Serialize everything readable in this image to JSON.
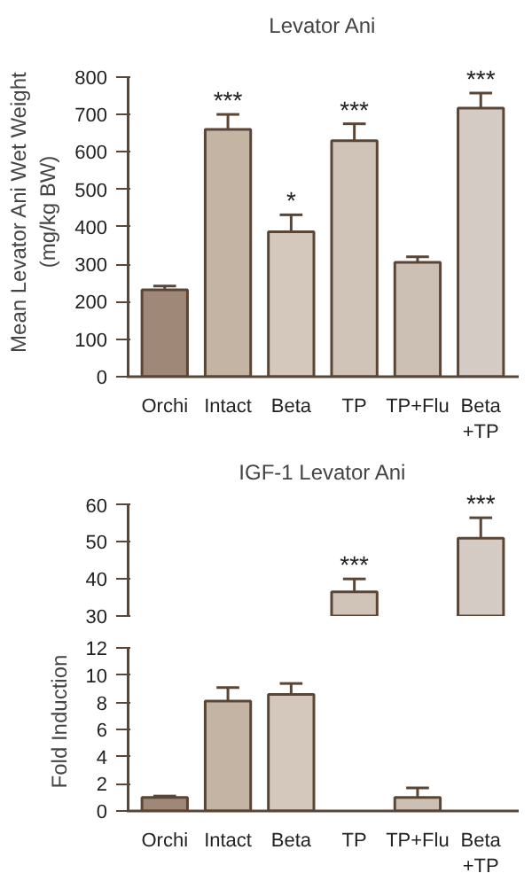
{
  "chart_data": [
    {
      "type": "bar",
      "title": "Levator Ani",
      "ylabel": "Mean Levator Ani Wet Weight\n(mg/kg BW)",
      "categories": [
        "Orchi",
        "Intact",
        "Beta",
        "TP",
        "TP+Flu",
        "Beta\n+TP"
      ],
      "values": [
        232,
        660,
        387,
        630,
        305,
        717
      ],
      "errors": [
        10,
        40,
        45,
        45,
        15,
        40
      ],
      "colors": [
        "#a08878",
        "#c4b4a4",
        "#d4c8bc",
        "#d0c4b8",
        "#ccc0b4",
        "#d4ccc4"
      ],
      "ylim": [
        0,
        800
      ],
      "yticks": [
        0,
        100,
        200,
        300,
        400,
        500,
        600,
        700,
        800
      ],
      "grid": false,
      "annotations": [
        {
          "text": "***",
          "x": "Intact",
          "y": 700
        },
        {
          "text": "*",
          "x": "Beta",
          "y": 432
        },
        {
          "text": "***",
          "x": "TP",
          "y": 675
        },
        {
          "text": "***",
          "x": "Beta\n+TP",
          "y": 757
        }
      ]
    },
    {
      "type": "bar",
      "title": "IGF-1 Levator Ani",
      "categories": [
        "Orchi",
        "Intact",
        "Beta",
        "TP",
        "TP+Flu",
        "Beta\n+TP"
      ],
      "values": [
        null,
        null,
        null,
        36.5,
        null,
        51
      ],
      "errors": [
        null,
        null,
        null,
        3.5,
        null,
        5.5
      ],
      "colors": [
        "#a08878",
        "#c4b4a4",
        "#d4c8bc",
        "#d0c4b8",
        "#ccc0b4",
        "#d4ccc4"
      ],
      "ylim": [
        30,
        60
      ],
      "yticks": [
        30,
        40,
        50,
        60
      ],
      "grid": false,
      "tick_labels": "y",
      "annotations": [
        {
          "text": "***",
          "x": "TP",
          "y": 40
        },
        {
          "text": "***",
          "x": "Beta\n+TP",
          "y": 56.5
        }
      ]
    },
    {
      "type": "bar",
      "ylabel": "Fold Induction",
      "categories": [
        "Orchi",
        "Intact",
        "Beta",
        "TP",
        "TP+Flu",
        "Beta\n+TP"
      ],
      "values": [
        1.0,
        8.1,
        8.6,
        null,
        1.0,
        null
      ],
      "errors": [
        0.1,
        1.0,
        0.8,
        null,
        0.7,
        null
      ],
      "colors": [
        "#a08878",
        "#c4b4a4",
        "#d4c8bc",
        "#d0c4b8",
        "#ccc0b4",
        "#d4ccc4"
      ],
      "ylim": [
        0,
        12
      ],
      "yticks": [
        0,
        2,
        4,
        6,
        8,
        10,
        12
      ],
      "grid": false
    }
  ]
}
